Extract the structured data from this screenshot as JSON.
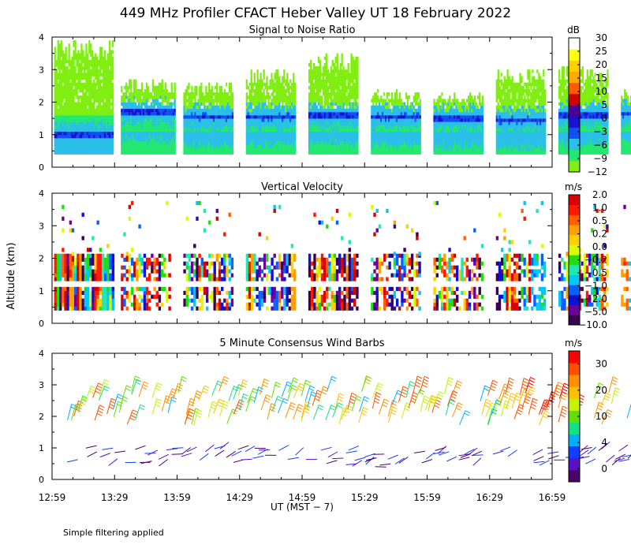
{
  "title": "449 MHz Profiler CFACT Heber Valley UT 18 February 2022",
  "ylabel": "Altitude (km)",
  "xlabel": "UT  (MST − 7)",
  "footnote": "Simple filtering applied",
  "x_ticks": [
    "12:59",
    "13:29",
    "13:59",
    "14:29",
    "14:59",
    "15:29",
    "15:59",
    "16:29",
    "16:59"
  ],
  "y_ticks": [
    "0",
    "1",
    "2",
    "3",
    "4"
  ],
  "colors": {
    "snr": [
      "#80ee10",
      "#22e870",
      "#2abfe8",
      "#1050f0",
      "#1a10d0",
      "#4a0098",
      "#d00000",
      "#ff5a00",
      "#ffa800",
      "#ffd000",
      "#ffff10",
      "#ffffff"
    ],
    "vv": [
      "#3a0050",
      "#6c0098",
      "#1010d0",
      "#0a60ff",
      "#00c8ff",
      "#20e8b0",
      "#20dc10",
      "#d8ff00",
      "#ffd000",
      "#ffa000",
      "#ff6000",
      "#ff1800",
      "#d80000"
    ],
    "wind": [
      "#4a0068",
      "#5a10c8",
      "#1040ff",
      "#00b0ff",
      "#10e088",
      "#60e000",
      "#c8f000",
      "#ffc000",
      "#ff9000",
      "#ff5000",
      "#ff0000"
    ]
  },
  "chart_data": [
    {
      "type": "heatmap",
      "title": "Signal to Noise Ratio",
      "units": "dB",
      "colorbar_ticks": [
        "30",
        "25",
        "20",
        "15",
        "10",
        "5",
        "0",
        "−3",
        "−6",
        "−9",
        "−12"
      ],
      "xlim": [
        "12:59",
        "16:59"
      ],
      "ylim": [
        0,
        4
      ],
      "data_start": "13:00",
      "data_end": "16:59",
      "observed_altitude_km": [
        0.4,
        4.0
      ]
    },
    {
      "type": "heatmap",
      "title": "Vertical Velocity",
      "units": "m/s",
      "colorbar_ticks": [
        "2.0",
        "1.0",
        "0.5",
        "0.2",
        "0.0",
        "−0.2",
        "−0.5",
        "−1.0",
        "−2.0",
        "−5.0",
        "−10.0"
      ],
      "xlim": [
        "12:59",
        "16:59"
      ],
      "ylim": [
        0,
        4
      ]
    },
    {
      "type": "scatter",
      "title": "5 Minute Consensus Wind Barbs",
      "units": "m/s",
      "colorbar_ticks": [
        "30",
        "20",
        "10",
        "4",
        "0"
      ],
      "xlim": [
        "12:59",
        "16:59"
      ],
      "ylim": [
        0,
        4
      ]
    }
  ]
}
